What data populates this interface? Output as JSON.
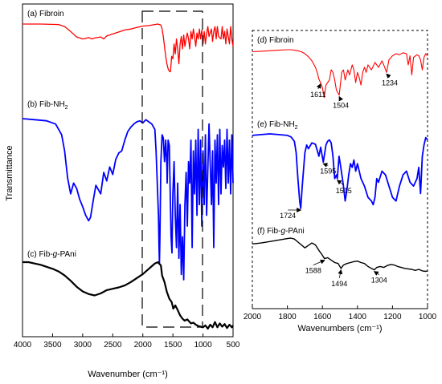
{
  "colors": {
    "fibroin": "#ff0000",
    "fib_nh2": "#0000ff",
    "fib_pani": "#000000",
    "axis": "#000000"
  },
  "chart_data": [
    {
      "type": "line",
      "title": "",
      "xlabel": "Wavenumber (cm⁻¹)",
      "ylabel": "Transmittance",
      "xlim": [
        4000,
        500
      ],
      "x_reversed": true,
      "xticks": [
        4000,
        3500,
        3000,
        2500,
        2000,
        1500,
        1000,
        500
      ],
      "y_ticks_shown": false,
      "grid": false,
      "zoom_box_x_range": [
        2000,
        1000
      ],
      "series": [
        {
          "name": "(a) Fibroin",
          "color": "#ff0000",
          "x": [
            4000,
            3700,
            3400,
            3300,
            3200,
            3100,
            3000,
            2950,
            2900,
            2850,
            2800,
            2700,
            2650,
            2600,
            2500,
            2400,
            2300,
            2200,
            2100,
            2000,
            1900,
            1800,
            1750,
            1700,
            1680,
            1660,
            1640,
            1630,
            1620,
            1600,
            1580,
            1560,
            1540,
            1530,
            1520,
            1500,
            1480,
            1460,
            1440,
            1420,
            1400,
            1380,
            1360,
            1340,
            1320,
            1300,
            1280,
            1260,
            1240,
            1220,
            1200,
            1180,
            1160,
            1140,
            1120,
            1100,
            1080,
            1060,
            1040,
            1020,
            1000,
            980,
            960,
            940,
            920,
            900,
            860,
            840,
            820,
            800,
            780,
            760,
            740,
            700,
            680,
            660,
            640,
            620,
            600,
            560,
            540,
            520,
            500
          ],
          "y": [
            1.0,
            1.0,
            0.99,
            0.95,
            0.85,
            0.74,
            0.7,
            0.71,
            0.73,
            0.7,
            0.72,
            0.74,
            0.7,
            0.76,
            0.8,
            0.84,
            0.88,
            0.9,
            0.93,
            0.96,
            0.97,
            0.99,
            1.0,
            0.98,
            0.9,
            0.75,
            0.55,
            0.45,
            0.35,
            0.2,
            0.1,
            0.05,
            0.04,
            0.2,
            0.35,
            0.3,
            0.6,
            0.4,
            0.7,
            0.5,
            0.2,
            0.6,
            0.75,
            0.5,
            0.78,
            0.55,
            0.7,
            0.82,
            0.7,
            0.5,
            0.85,
            0.7,
            0.9,
            0.75,
            0.55,
            0.82,
            0.7,
            0.9,
            0.7,
            0.88,
            0.6,
            0.85,
            0.6,
            0.8,
            0.95,
            0.75,
            0.9,
            0.65,
            0.85,
            0.95,
            0.7,
            0.95,
            0.75,
            0.7,
            0.95,
            0.7,
            0.85,
            0.6,
            0.9,
            0.6,
            0.95,
            0.7,
            0.55
          ]
        },
        {
          "name": "(b) Fib-NH₂",
          "color": "#0000ff",
          "x": [
            4000,
            3800,
            3600,
            3450,
            3350,
            3300,
            3250,
            3200,
            3150,
            3100,
            3050,
            3000,
            2950,
            2900,
            2870,
            2820,
            2780,
            2700,
            2650,
            2600,
            2550,
            2500,
            2450,
            2400,
            2350,
            2300,
            2250,
            2200,
            2150,
            2100,
            2050,
            2000,
            1950,
            1900,
            1850,
            1800,
            1780,
            1760,
            1740,
            1730,
            1724,
            1715,
            1700,
            1680,
            1660,
            1640,
            1620,
            1600,
            1595,
            1580,
            1560,
            1540,
            1530,
            1515,
            1500,
            1480,
            1460,
            1440,
            1420,
            1400,
            1380,
            1360,
            1340,
            1320,
            1300,
            1280,
            1260,
            1240,
            1220,
            1200,
            1180,
            1160,
            1140,
            1120,
            1100,
            1080,
            1060,
            1040,
            1020,
            1000,
            980,
            960,
            940,
            900,
            860,
            840,
            820,
            800,
            780,
            760,
            740,
            720,
            700,
            680,
            660,
            640,
            620,
            600,
            580,
            560,
            540,
            520,
            500
          ],
          "y": [
            1.0,
            0.99,
            0.98,
            0.95,
            0.85,
            0.7,
            0.45,
            0.3,
            0.4,
            0.35,
            0.25,
            0.18,
            0.1,
            0.05,
            0.08,
            0.25,
            0.38,
            0.3,
            0.5,
            0.42,
            0.55,
            0.48,
            0.62,
            0.68,
            0.7,
            0.8,
            0.88,
            0.92,
            0.95,
            0.97,
            0.98,
            0.96,
            0.99,
            0.97,
            0.95,
            0.9,
            0.7,
            0.4,
            0.1,
            -0.2,
            -0.35,
            -0.1,
            0.6,
            0.85,
            0.82,
            0.6,
            0.8,
            0.55,
            0.4,
            0.8,
            0.75,
            0.2,
            -0.1,
            -0.25,
            0.3,
            0.6,
            0.1,
            -0.2,
            0.4,
            -0.3,
            0.2,
            -0.45,
            -0.1,
            -0.5,
            0.2,
            0.5,
            0.0,
            0.6,
            0.4,
            0.8,
            -0.2,
            0.7,
            0.3,
            0.8,
            0.1,
            0.9,
            0.2,
            0.8,
            0.0,
            0.7,
            0.2,
            0.85,
            0.1,
            0.95,
            0.2,
            0.7,
            -0.2,
            0.8,
            0.4,
            0.85,
            0.2,
            0.9,
            0.3,
            0.75,
            0.55,
            0.8,
            0.35,
            0.9,
            0.4,
            0.8,
            0.3,
            0.85,
            0.4
          ]
        },
        {
          "name": "(c) Fib-g-PAni",
          "color": "#000000",
          "x": [
            4000,
            3900,
            3800,
            3700,
            3600,
            3500,
            3400,
            3300,
            3200,
            3100,
            3000,
            2900,
            2800,
            2700,
            2600,
            2500,
            2400,
            2300,
            2200,
            2100,
            2000,
            1950,
            1900,
            1850,
            1800,
            1750,
            1700,
            1680,
            1640,
            1600,
            1588,
            1560,
            1520,
            1494,
            1460,
            1420,
            1380,
            1340,
            1304,
            1260,
            1220,
            1200,
            1160,
            1120,
            1080,
            1040,
            1000,
            960,
            920,
            880,
            840,
            800,
            760,
            720,
            680,
            640,
            600,
            560,
            520,
            500
          ],
          "y": [
            1.0,
            1.0,
            0.98,
            0.96,
            0.93,
            0.9,
            0.86,
            0.8,
            0.72,
            0.63,
            0.56,
            0.52,
            0.5,
            0.53,
            0.58,
            0.6,
            0.62,
            0.65,
            0.7,
            0.76,
            0.82,
            0.86,
            0.9,
            0.94,
            0.98,
            1.0,
            0.95,
            0.8,
            0.7,
            0.55,
            0.52,
            0.45,
            0.4,
            0.3,
            0.35,
            0.28,
            0.2,
            0.15,
            0.12,
            0.14,
            0.1,
            0.08,
            0.09,
            0.06,
            0.04,
            0.03,
            0.02,
            0.05,
            0.0,
            0.06,
            0.02,
            0.1,
            0.02,
            0.08,
            0.03,
            0.07,
            0.01,
            0.06,
            0.02,
            0.05
          ]
        }
      ],
      "panel_labels": [
        "(a) Fibroin",
        "(b) Fib-NH₂",
        "(c) Fib-g-PAni"
      ]
    },
    {
      "type": "line",
      "title": "",
      "xlabel": "Wavenumbers (cm⁻¹)",
      "ylabel": "",
      "xlim": [
        2000,
        1000
      ],
      "x_reversed": true,
      "xticks": [
        2000,
        1800,
        1600,
        1400,
        1200,
        1000
      ],
      "y_ticks_shown": false,
      "grid": false,
      "series": [
        {
          "name": "(d) Fibroin",
          "color": "#ff0000",
          "x": [
            2000,
            1950,
            1900,
            1850,
            1800,
            1780,
            1760,
            1740,
            1720,
            1700,
            1680,
            1660,
            1640,
            1630,
            1620,
            1611,
            1600,
            1590,
            1580,
            1560,
            1550,
            1540,
            1530,
            1520,
            1504,
            1490,
            1480,
            1470,
            1455,
            1445,
            1430,
            1420,
            1410,
            1400,
            1390,
            1380,
            1370,
            1360,
            1350,
            1340,
            1320,
            1300,
            1280,
            1260,
            1250,
            1234,
            1220,
            1200,
            1180,
            1160,
            1140,
            1120,
            1110,
            1100,
            1090,
            1080,
            1060,
            1050,
            1040,
            1030,
            1020,
            1010,
            1000
          ],
          "y": [
            0.96,
            0.97,
            0.98,
            0.99,
            1.0,
            1.0,
            0.99,
            0.98,
            0.96,
            0.92,
            0.86,
            0.78,
            0.65,
            0.55,
            0.42,
            0.35,
            0.25,
            0.05,
            0.3,
            0.4,
            0.6,
            0.55,
            0.4,
            0.2,
            0.1,
            0.55,
            0.6,
            0.4,
            0.6,
            0.5,
            0.7,
            0.6,
            0.35,
            0.55,
            0.45,
            0.3,
            0.55,
            0.65,
            0.55,
            0.7,
            0.6,
            0.75,
            0.65,
            0.78,
            0.7,
            0.55,
            0.8,
            0.88,
            0.92,
            0.9,
            0.94,
            0.92,
            0.7,
            0.88,
            0.5,
            0.85,
            0.9,
            0.88,
            0.8,
            0.6,
            0.85,
            0.92,
            0.88
          ]
        },
        {
          "name": "(e) Fib-NH₂",
          "color": "#0000ff",
          "x": [
            2000,
            1950,
            1900,
            1850,
            1800,
            1780,
            1760,
            1750,
            1740,
            1730,
            1724,
            1715,
            1700,
            1690,
            1680,
            1660,
            1640,
            1630,
            1620,
            1610,
            1595,
            1580,
            1570,
            1560,
            1550,
            1540,
            1530,
            1520,
            1515,
            1505,
            1495,
            1480,
            1470,
            1460,
            1450,
            1440,
            1430,
            1420,
            1410,
            1400,
            1380,
            1360,
            1340,
            1320,
            1310,
            1300,
            1290,
            1280,
            1260,
            1240,
            1220,
            1200,
            1180,
            1160,
            1140,
            1120,
            1100,
            1080,
            1060,
            1050,
            1040,
            1030,
            1020,
            1010,
            1000
          ],
          "y": [
            0.98,
            0.99,
            1.0,
            0.99,
            0.98,
            0.96,
            0.9,
            0.75,
            0.4,
            0.1,
            0.0,
            0.3,
            0.75,
            0.85,
            0.8,
            0.88,
            0.86,
            0.78,
            0.7,
            0.82,
            0.62,
            0.85,
            0.9,
            0.92,
            0.88,
            0.7,
            0.4,
            0.45,
            0.4,
            0.7,
            0.55,
            0.3,
            0.1,
            0.25,
            0.45,
            0.6,
            0.55,
            0.65,
            0.5,
            0.6,
            0.4,
            0.3,
            0.15,
            0.1,
            0.05,
            0.15,
            0.4,
            0.35,
            0.5,
            0.45,
            0.3,
            0.15,
            0.1,
            0.3,
            0.45,
            0.5,
            0.35,
            0.3,
            0.4,
            0.55,
            0.2,
            0.7,
            0.85,
            0.95,
            0.92
          ]
        },
        {
          "name": "(f) Fib-g-PAni",
          "color": "#000000",
          "x": [
            2000,
            1950,
            1900,
            1850,
            1800,
            1780,
            1760,
            1740,
            1700,
            1680,
            1660,
            1640,
            1620,
            1600,
            1588,
            1570,
            1550,
            1530,
            1510,
            1494,
            1480,
            1460,
            1440,
            1420,
            1400,
            1380,
            1360,
            1340,
            1320,
            1304,
            1290,
            1270,
            1250,
            1230,
            1210,
            1190,
            1170,
            1150,
            1130,
            1110,
            1090,
            1070,
            1050,
            1030,
            1010,
            1000
          ],
          "y": [
            0.88,
            0.9,
            0.93,
            0.96,
            0.99,
            1.0,
            0.98,
            0.92,
            0.8,
            0.85,
            0.9,
            0.86,
            0.75,
            0.65,
            0.58,
            0.6,
            0.55,
            0.5,
            0.48,
            0.38,
            0.45,
            0.48,
            0.5,
            0.52,
            0.53,
            0.5,
            0.48,
            0.42,
            0.38,
            0.35,
            0.4,
            0.42,
            0.4,
            0.44,
            0.46,
            0.45,
            0.42,
            0.4,
            0.38,
            0.37,
            0.36,
            0.34,
            0.36,
            0.33,
            0.32,
            0.33
          ]
        }
      ],
      "annotations": [
        {
          "series": "(d) Fibroin",
          "x": 1611,
          "text": "1611"
        },
        {
          "series": "(d) Fibroin",
          "x": 1504,
          "text": "1504"
        },
        {
          "series": "(d) Fibroin",
          "x": 1234,
          "text": "1234"
        },
        {
          "series": "(e) Fib-NH₂",
          "x": 1595,
          "text": "1595"
        },
        {
          "series": "(e) Fib-NH₂",
          "x": 1724,
          "text": "1724"
        },
        {
          "series": "(e) Fib-NH₂",
          "x": 1515,
          "text": "1515"
        },
        {
          "series": "(f) Fib-g-PAni",
          "x": 1588,
          "text": "1588"
        },
        {
          "series": "(f) Fib-g-PAni",
          "x": 1494,
          "text": "1494"
        },
        {
          "series": "(f) Fib-g-PAni",
          "x": 1304,
          "text": "1304"
        }
      ]
    }
  ]
}
